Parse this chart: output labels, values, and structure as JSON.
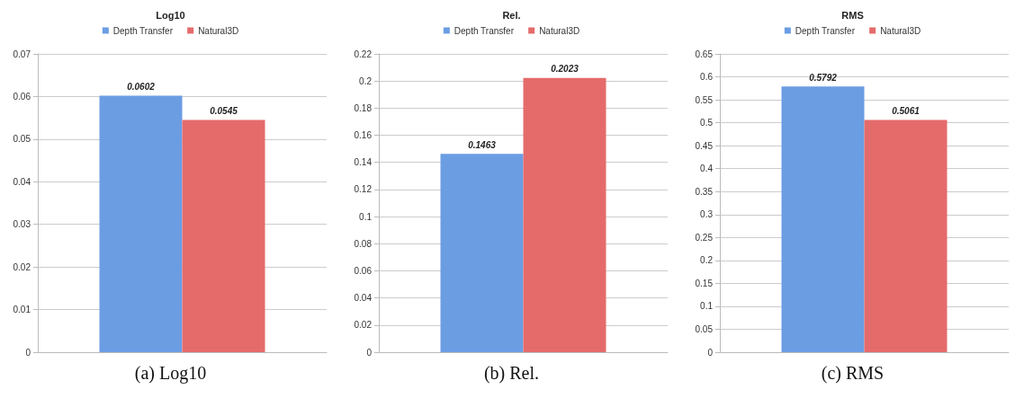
{
  "chart_data": [
    {
      "type": "bar",
      "title": "Log10",
      "categories": [
        null
      ],
      "series": [
        {
          "name": "Depth Transfer",
          "color": "#6b9de3",
          "values": [
            0.0602
          ]
        },
        {
          "name": "Natural3D",
          "color": "#e56b6b",
          "values": [
            0.0545
          ]
        }
      ],
      "ylim": [
        0,
        0.07
      ],
      "yticks": [
        0,
        0.01,
        0.02,
        0.03,
        0.04,
        0.05,
        0.06,
        0.07
      ],
      "grid": "y",
      "legend": "top",
      "data_labels": true,
      "annotations": [
        "(a) Log10"
      ]
    },
    {
      "type": "bar",
      "title": "Rel.",
      "categories": [
        null
      ],
      "series": [
        {
          "name": "Depth Transfer",
          "color": "#6b9de3",
          "values": [
            0.1463
          ]
        },
        {
          "name": "Natural3D",
          "color": "#e56b6b",
          "values": [
            0.2023
          ]
        }
      ],
      "ylim": [
        0,
        0.22
      ],
      "yticks": [
        0,
        0.02,
        0.04,
        0.06,
        0.08,
        0.1,
        0.12,
        0.14,
        0.16,
        0.18,
        0.2,
        0.22
      ],
      "grid": "y",
      "legend": "top",
      "data_labels": true,
      "annotations": [
        "(b) Rel."
      ]
    },
    {
      "type": "bar",
      "title": "RMS",
      "categories": [
        null
      ],
      "series": [
        {
          "name": "Depth Transfer",
          "color": "#6b9de3",
          "values": [
            0.5792
          ]
        },
        {
          "name": "Natural3D",
          "color": "#e56b6b",
          "values": [
            0.5061
          ]
        }
      ],
      "ylim": [
        0,
        0.65
      ],
      "yticks": [
        0,
        0.05,
        0.1,
        0.15,
        0.2,
        0.25,
        0.3,
        0.35,
        0.4,
        0.45,
        0.5,
        0.55,
        0.6,
        0.65
      ],
      "grid": "y",
      "legend": "top",
      "data_labels": true,
      "annotations": [
        "(c) RMS"
      ]
    }
  ]
}
